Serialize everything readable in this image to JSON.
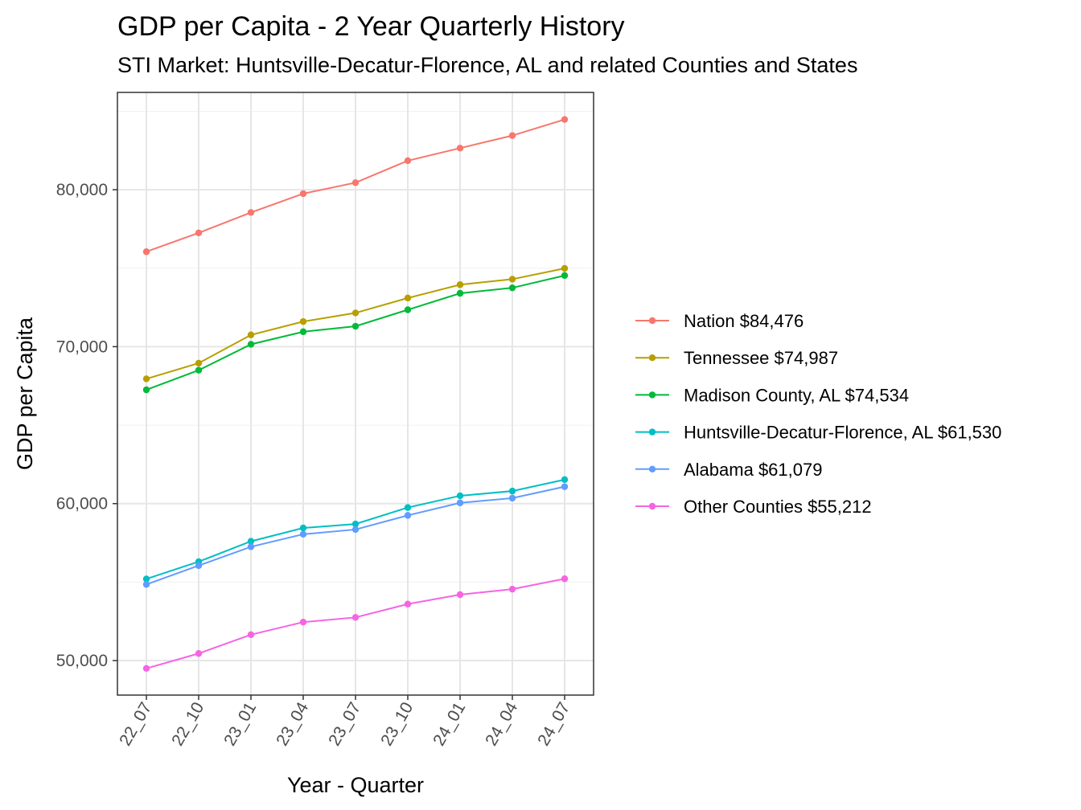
{
  "chart_data": {
    "type": "line",
    "title": "GDP per Capita - 2 Year Quarterly History",
    "subtitle": "STI Market: Huntsville-Decatur-Florence, AL and related Counties and States",
    "xlabel": "Year - Quarter",
    "ylabel": "GDP per Capita",
    "categories": [
      "22_07",
      "22_10",
      "23_01",
      "23_04",
      "23_07",
      "23_10",
      "24_01",
      "24_04",
      "24_07"
    ],
    "ylim": [
      47800,
      86200
    ],
    "yticks": [
      50000,
      60000,
      70000,
      80000
    ],
    "ytick_labels": [
      "50,000",
      "60,000",
      "70,000",
      "80,000"
    ],
    "grid": true,
    "legend_position": "right",
    "series": [
      {
        "name": "Nation $84,476",
        "color": "#F8766D",
        "values": [
          76050,
          77250,
          78550,
          79750,
          80450,
          81850,
          82650,
          83450,
          84476
        ]
      },
      {
        "name": "Tennessee $74,987",
        "color": "#B79F00",
        "values": [
          67950,
          68950,
          70750,
          71600,
          72150,
          73100,
          73950,
          74300,
          74987
        ]
      },
      {
        "name": "Madison County, AL $74,534",
        "color": "#00BA38",
        "values": [
          67250,
          68500,
          70150,
          70950,
          71300,
          72350,
          73400,
          73750,
          74534
        ]
      },
      {
        "name": "Huntsville-Decatur-Florence, AL $61,530",
        "color": "#00BFC4",
        "values": [
          55200,
          56300,
          57600,
          58450,
          58700,
          59750,
          60500,
          60800,
          61530
        ]
      },
      {
        "name": "Alabama $61,079",
        "color": "#619CFF",
        "values": [
          54850,
          56050,
          57250,
          58050,
          58350,
          59250,
          60050,
          60350,
          61079
        ]
      },
      {
        "name": "Other Counties $55,212",
        "color": "#F564E3",
        "values": [
          49500,
          50450,
          51650,
          52450,
          52750,
          53600,
          54200,
          54550,
          55212
        ]
      }
    ]
  }
}
